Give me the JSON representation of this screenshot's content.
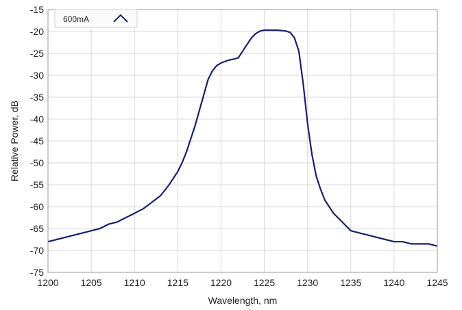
{
  "chart_data": {
    "type": "line",
    "xlabel": "Wavelength, nm",
    "ylabel": "Relative Power, dB",
    "xlim": [
      1200,
      1245
    ],
    "ylim": [
      -75,
      -15
    ],
    "xticks": [
      1200,
      1205,
      1210,
      1215,
      1220,
      1225,
      1230,
      1235,
      1240,
      1245
    ],
    "yticks": [
      -15,
      -20,
      -25,
      -30,
      -35,
      -40,
      -45,
      -50,
      -55,
      -60,
      -65,
      -70,
      -75
    ],
    "grid": true,
    "legend_position": "top-left",
    "series": [
      {
        "name": "600mA",
        "color": "#1a1f6b",
        "x": [
          1200,
          1201,
          1202,
          1203,
          1204,
          1205,
          1206,
          1207,
          1208,
          1209,
          1210,
          1211,
          1212,
          1213,
          1214,
          1215,
          1215.5,
          1216,
          1216.5,
          1217,
          1217.5,
          1218,
          1218.5,
          1219,
          1219.5,
          1220,
          1220.5,
          1221,
          1221.5,
          1222,
          1222.5,
          1223,
          1223.5,
          1224,
          1224.5,
          1225,
          1225.5,
          1226,
          1226.5,
          1227,
          1227.5,
          1228,
          1228.5,
          1229,
          1229.5,
          1230,
          1230.5,
          1231,
          1231.5,
          1232,
          1233,
          1234,
          1235,
          1236,
          1237,
          1238,
          1239,
          1240,
          1241,
          1242,
          1243,
          1244,
          1245
        ],
        "y": [
          -68,
          -67.5,
          -67,
          -66.5,
          -66,
          -65.5,
          -65,
          -64,
          -63.5,
          -62.5,
          -61.5,
          -60.5,
          -59,
          -57.5,
          -55,
          -52,
          -50,
          -47.5,
          -44.5,
          -41.5,
          -38,
          -34.5,
          -31,
          -29,
          -27.8,
          -27.2,
          -26.8,
          -26.5,
          -26.3,
          -26,
          -24.5,
          -23,
          -21.5,
          -20.5,
          -19.9,
          -19.7,
          -19.7,
          -19.7,
          -19.7,
          -19.8,
          -19.9,
          -20.2,
          -21.5,
          -24.5,
          -32,
          -41,
          -48,
          -53,
          -56,
          -58.5,
          -61.5,
          -63.5,
          -65.5,
          -66,
          -66.5,
          -67,
          -67.5,
          -68,
          -68,
          -68.5,
          -68.5,
          -68.5,
          -69
        ]
      }
    ]
  }
}
